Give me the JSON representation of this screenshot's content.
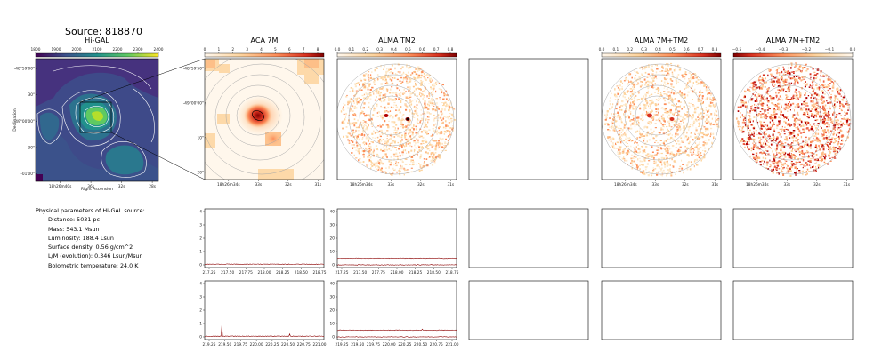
{
  "source_title": "Source: 818870",
  "panels": {
    "higal": {
      "title": "Hi-GAL",
      "colorbar_ticks": [
        "1800",
        "1900",
        "2000",
        "2100",
        "2200",
        "2300",
        "2400"
      ],
      "yticks": [
        "-48°59'00\"",
        "30\"",
        "-49°00'00\"",
        "30\"",
        "-01'00\""
      ],
      "xticks": [
        "18h26m40s",
        "36s",
        "32s",
        "28s"
      ],
      "xlabel": "Right Ascension",
      "ylabel": "Declination"
    },
    "aca7m": {
      "title": "ACA 7M",
      "colorbar_ticks": [
        "0",
        "1",
        "2",
        "3",
        "4",
        "5",
        "6",
        "7",
        "8"
      ],
      "yticks": [
        "-48°59'50\"",
        "-49°00'00\"",
        "10\"",
        "20\""
      ],
      "xticks": [
        "18h26m34s",
        "33s",
        "32s",
        "31s"
      ]
    },
    "almatm2": {
      "title": "ALMA TM2",
      "colorbar_ticks": [
        "0.0",
        "0.1",
        "0.2",
        "0.3",
        "0.4",
        "0.5",
        "0.6",
        "0.7",
        "0.8"
      ],
      "xticks": [
        "18h26m34s",
        "33s",
        "32s",
        "31s"
      ]
    },
    "alma7mtm2a": {
      "title": "ALMA 7M+TM2",
      "colorbar_ticks": [
        "0.0",
        "0.1",
        "0.2",
        "0.3",
        "0.4",
        "0.5",
        "0.6",
        "0.7",
        "0.8"
      ],
      "xticks": [
        "18h26m34s",
        "33s",
        "32s",
        "31s"
      ]
    },
    "alma7mtm2b": {
      "title": "ALMA 7M+TM2",
      "colorbar_ticks": [
        "−0.5",
        "−0.4",
        "−0.3",
        "−0.2",
        "−0.1",
        "0.0"
      ],
      "xticks": [
        "18h26m34s",
        "33s",
        "32s",
        "31s"
      ]
    }
  },
  "params": {
    "heading": "Physical parameters of Hi-GAL source:",
    "items": [
      "Distance: 5031 pc",
      "Mass: 543.1 Msun",
      "Luminosity: 188.4 Lsun",
      "Surface density: 0.56 g/cm^2",
      "L/M (evolution): 0.346 Lsun/Msun",
      "Bolometric temperature: 24.0 K"
    ]
  },
  "chart_data": [
    {
      "type": "line",
      "panel": "spectrum-aca-row1",
      "x": [
        "217.25",
        "217.50",
        "217.75",
        "218.00",
        "218.25",
        "218.50",
        "218.75"
      ],
      "yticks": [
        "0",
        "1",
        "2",
        "3",
        "4"
      ],
      "ylim": [
        0,
        4
      ],
      "series": [
        {
          "values": [
            0.05,
            0.06,
            0.05,
            0.05,
            0.06,
            0.05,
            0.05
          ]
        }
      ]
    },
    {
      "type": "line",
      "panel": "spectrum-alma-row1",
      "x": [
        "217.25",
        "217.50",
        "217.75",
        "218.00",
        "218.25",
        "218.50",
        "218.75"
      ],
      "yticks": [
        "0",
        "10",
        "20",
        "30",
        "40"
      ],
      "ylim": [
        0,
        40
      ],
      "series": [
        {
          "values": [
            5,
            5,
            5,
            5,
            5,
            5,
            5
          ]
        },
        {
          "values": [
            0,
            0,
            0,
            0,
            0,
            0,
            0
          ]
        }
      ]
    },
    {
      "type": "line",
      "panel": "spectrum-aca-row2",
      "x": [
        "219.25",
        "219.50",
        "219.75",
        "220.00",
        "220.25",
        "220.50",
        "220.75",
        "221.00"
      ],
      "yticks": [
        "0",
        "1",
        "2",
        "3",
        "4"
      ],
      "ylim": [
        0,
        4
      ],
      "series": [
        {
          "values": [
            0.05,
            0.9,
            0.05,
            0.05,
            0.05,
            0.2,
            0.05,
            0.05
          ]
        }
      ]
    },
    {
      "type": "line",
      "panel": "spectrum-alma-row2",
      "x": [
        "219.25",
        "219.50",
        "219.75",
        "220.00",
        "220.25",
        "220.50",
        "220.75",
        "221.00"
      ],
      "yticks": [
        "0",
        "10",
        "20",
        "30",
        "40"
      ],
      "ylim": [
        0,
        40
      ],
      "series": [
        {
          "values": [
            5,
            5,
            5,
            5,
            5,
            6,
            5,
            5
          ]
        },
        {
          "values": [
            0,
            0,
            0,
            0,
            0,
            0,
            0,
            0
          ]
        }
      ]
    }
  ]
}
